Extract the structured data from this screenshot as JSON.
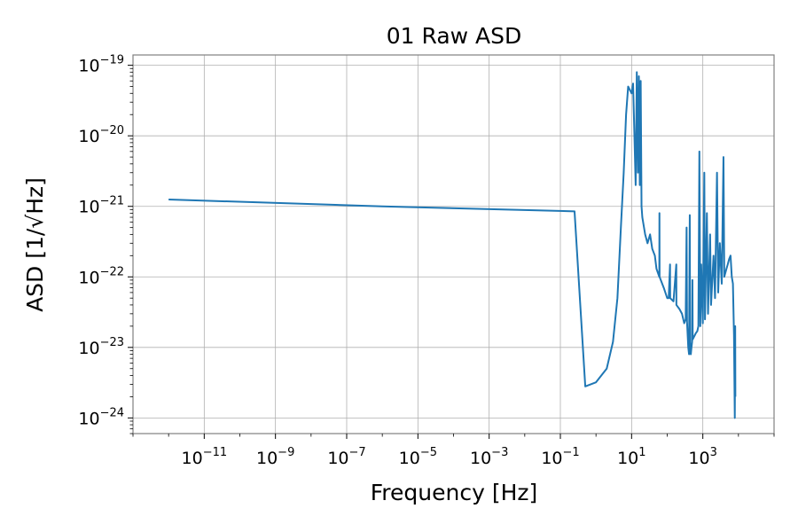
{
  "chart_data": {
    "type": "line",
    "title": "01 Raw ASD",
    "xlabel": "Frequency [Hz]",
    "ylabel": "ASD [1/√Hz]",
    "xscale": "log",
    "yscale": "log",
    "xlim": [
      1e-13,
      100000.0
    ],
    "ylim": [
      6e-25,
      1.4e-19
    ],
    "grid": true,
    "color": "#1f77b4",
    "x_ticks": [
      {
        "base": "10",
        "exp": "−11",
        "value": 1e-11
      },
      {
        "base": "10",
        "exp": "−9",
        "value": 1e-09
      },
      {
        "base": "10",
        "exp": "−7",
        "value": 1e-07
      },
      {
        "base": "10",
        "exp": "−5",
        "value": 1e-05
      },
      {
        "base": "10",
        "exp": "−3",
        "value": 0.001
      },
      {
        "base": "10",
        "exp": "−1",
        "value": 0.1
      },
      {
        "base": "10",
        "exp": "1",
        "value": 10
      },
      {
        "base": "10",
        "exp": "3",
        "value": 1000
      }
    ],
    "y_ticks": [
      {
        "base": "10",
        "exp": "−19",
        "value": 1e-19
      },
      {
        "base": "10",
        "exp": "−20",
        "value": 1e-20
      },
      {
        "base": "10",
        "exp": "−21",
        "value": 1e-21
      },
      {
        "base": "10",
        "exp": "−22",
        "value": 1e-22
      },
      {
        "base": "10",
        "exp": "−23",
        "value": 1e-23
      },
      {
        "base": "10",
        "exp": "−24",
        "value": 1e-24
      }
    ],
    "series": [
      {
        "points": [
          [
            1e-12,
            1.25e-21
          ],
          [
            1e-06,
            1e-21
          ],
          [
            0.25,
            8.5e-22
          ],
          [
            0.5,
            2.8e-24
          ],
          [
            1,
            3.2e-24
          ],
          [
            2,
            5e-24
          ],
          [
            3,
            1.2e-23
          ],
          [
            4,
            5e-23
          ],
          [
            5,
            5e-22
          ],
          [
            6,
            3e-21
          ],
          [
            7,
            2e-20
          ],
          [
            8,
            5e-20
          ],
          [
            10,
            4e-20
          ],
          [
            11,
            5.5e-20
          ],
          [
            12,
            1e-20
          ],
          [
            13,
            2e-21
          ],
          [
            14,
            8e-20
          ],
          [
            15,
            3e-21
          ],
          [
            16,
            7e-20
          ],
          [
            17,
            2e-21
          ],
          [
            18,
            6e-20
          ],
          [
            19,
            1e-21
          ],
          [
            20,
            7e-22
          ],
          [
            24,
            4e-22
          ],
          [
            28,
            3e-22
          ],
          [
            33,
            4e-22
          ],
          [
            38,
            2.5e-22
          ],
          [
            45,
            2e-22
          ],
          [
            50,
            1.3e-22
          ],
          [
            60,
            1e-22
          ],
          [
            60.5,
            8e-22
          ],
          [
            61,
            1e-22
          ],
          [
            80,
            7e-23
          ],
          [
            100,
            5e-23
          ],
          [
            110,
            5e-23
          ],
          [
            120,
            1.5e-22
          ],
          [
            121,
            5e-23
          ],
          [
            150,
            4.5e-23
          ],
          [
            180,
            1.5e-22
          ],
          [
            181,
            4e-23
          ],
          [
            220,
            3.5e-23
          ],
          [
            260,
            3e-23
          ],
          [
            300,
            2.2e-23
          ],
          [
            330,
            2.5e-23
          ],
          [
            350,
            5e-22
          ],
          [
            360,
            2.3e-23
          ],
          [
            390,
            1e-23
          ],
          [
            410,
            8e-24
          ],
          [
            430,
            7.5e-22
          ],
          [
            440,
            9e-24
          ],
          [
            460,
            8e-24
          ],
          [
            480,
            1e-23
          ],
          [
            500,
            1.2e-23
          ],
          [
            510,
            9e-23
          ],
          [
            520,
            1.3e-23
          ],
          [
            560,
            1.4e-23
          ],
          [
            600,
            1.5e-23
          ],
          [
            640,
            1.6e-23
          ],
          [
            700,
            1.7e-23
          ],
          [
            750,
            2e-23
          ],
          [
            800,
            6e-21
          ],
          [
            850,
            2e-23
          ],
          [
            900,
            1.5e-22
          ],
          [
            1000,
            2.2e-23
          ],
          [
            1100,
            3e-21
          ],
          [
            1150,
            2.5e-23
          ],
          [
            1300,
            8e-22
          ],
          [
            1400,
            3e-23
          ],
          [
            1600,
            4e-22
          ],
          [
            1700,
            4e-23
          ],
          [
            2000,
            2e-22
          ],
          [
            2200,
            5e-23
          ],
          [
            2500,
            3e-21
          ],
          [
            2700,
            6e-23
          ],
          [
            3000,
            3e-22
          ],
          [
            3400,
            8e-23
          ],
          [
            3800,
            5e-21
          ],
          [
            4000,
            1e-22
          ],
          [
            4600,
            1.3e-22
          ],
          [
            5000,
            1.5e-22
          ],
          [
            5500,
            1.8e-22
          ],
          [
            6000,
            2e-22
          ],
          [
            6500,
            1e-22
          ],
          [
            7000,
            8e-23
          ],
          [
            7500,
            1.5e-23
          ],
          [
            7900,
            1e-24
          ],
          [
            8100,
            2e-23
          ],
          [
            8192,
            2e-24
          ]
        ]
      }
    ]
  }
}
